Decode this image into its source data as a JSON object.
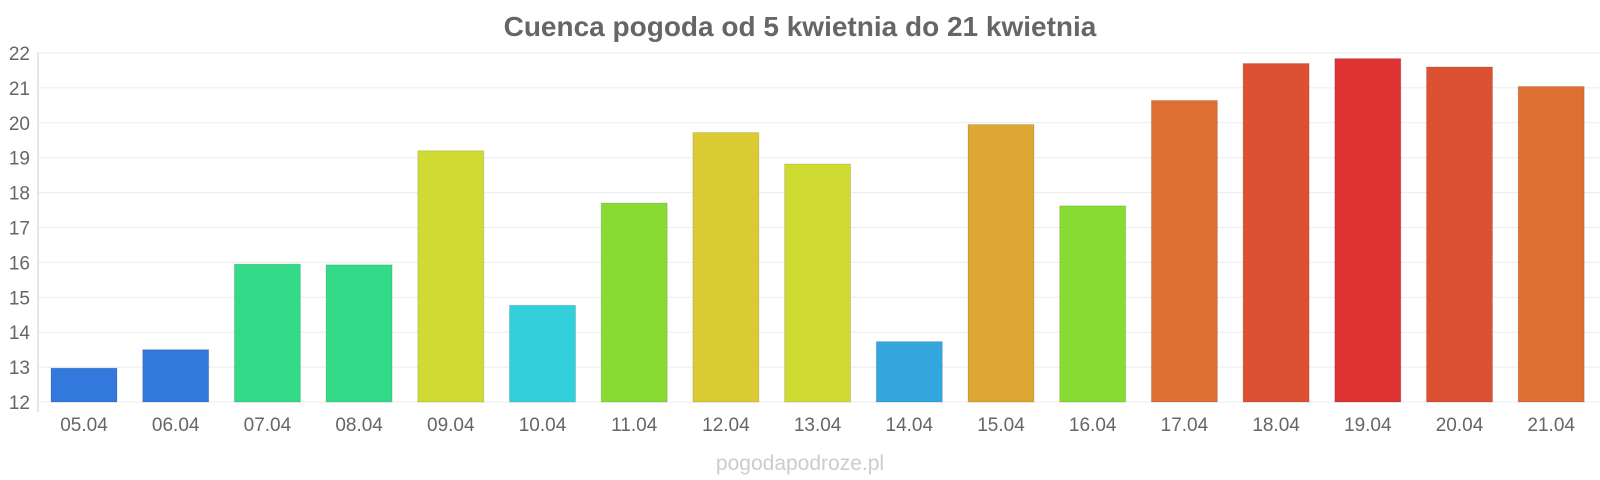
{
  "chart_data": {
    "type": "bar",
    "title": "Cuenca pogoda od 5 kwietnia do 21 kwietnia",
    "xlabel": "",
    "ylabel": "",
    "ylim": [
      12,
      22
    ],
    "yticks": [
      12,
      13,
      14,
      15,
      16,
      17,
      18,
      19,
      20,
      21,
      22
    ],
    "grid": true,
    "categories": [
      "05.04",
      "06.04",
      "07.04",
      "08.04",
      "09.04",
      "10.04",
      "11.04",
      "12.04",
      "13.04",
      "14.04",
      "15.04",
      "16.04",
      "17.04",
      "18.04",
      "19.04",
      "20.04",
      "21.04"
    ],
    "values": [
      12.97,
      13.5,
      15.95,
      15.93,
      19.2,
      14.77,
      17.7,
      19.72,
      18.82,
      13.73,
      19.95,
      17.62,
      20.64,
      21.7,
      21.84,
      21.6,
      21.04
    ],
    "colors": [
      "#3378dd",
      "#3378dd",
      "#33da87",
      "#33da87",
      "#cfdb33",
      "#33cfdb",
      "#87db33",
      "#dbcb33",
      "#cfdb33",
      "#33a7dd",
      "#dda733",
      "#87db33",
      "#dd6f33",
      "#dd5133",
      "#dd3333",
      "#dd5133",
      "#dd6f33"
    ]
  },
  "watermark": "pogodapodroze.pl"
}
